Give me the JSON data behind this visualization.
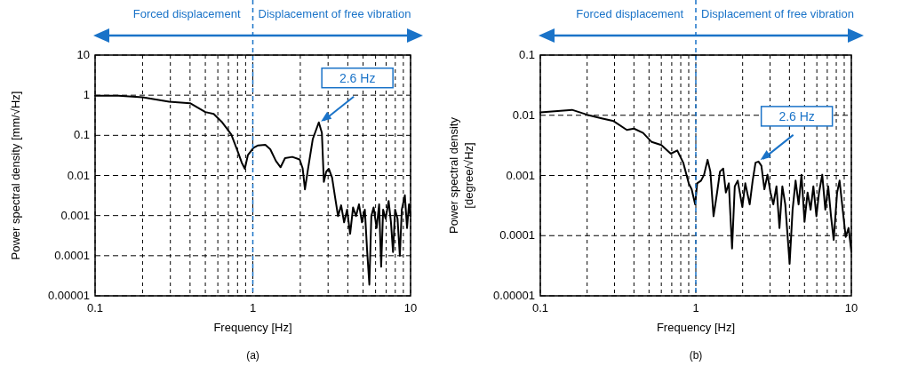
{
  "chart_data": [
    {
      "type": "line",
      "xlabel": "Frequency [Hz]",
      "ylabel": "Power spectral density [mm/√Hz]",
      "log": "xy",
      "grid": true,
      "marker": "none",
      "line_style": "solid",
      "xlim": [
        0.1,
        10
      ],
      "ylim": [
        1e-05,
        10
      ],
      "xticks": [
        0.1,
        {
          "value": 0.2,
          "label": null
        },
        {
          "value": 0.3,
          "label": null
        },
        {
          "value": 0.4,
          "label": null
        },
        {
          "value": 0.5,
          "label": null
        },
        {
          "value": 0.6,
          "label": null
        },
        {
          "value": 0.7,
          "label": null
        },
        {
          "value": 0.8,
          "label": null
        },
        {
          "value": 0.9,
          "label": null
        },
        1,
        {
          "value": 2,
          "label": null
        },
        {
          "value": 3,
          "label": null
        },
        {
          "value": 4,
          "label": null
        },
        {
          "value": 5,
          "label": null
        },
        {
          "value": 6,
          "label": null
        },
        {
          "value": 7,
          "label": null
        },
        {
          "value": 8,
          "label": null
        },
        {
          "value": 9,
          "label": null
        },
        10
      ],
      "yticks": [
        {
          "value": 1e-05,
          "label": "0.00001"
        },
        {
          "value": 0.0001,
          "label": "0.0001"
        },
        {
          "value": 0.001,
          "label": "0.001"
        },
        {
          "value": 0.01,
          "label": "0.01"
        },
        {
          "value": 0.1,
          "label": "0.1"
        },
        {
          "value": 1,
          "label": "1"
        },
        {
          "value": 10,
          "label": "10"
        }
      ],
      "ref_lines": [
        {
          "axis": "x",
          "value": 1,
          "color": "#1a73c8",
          "line_style": "dashed"
        }
      ],
      "annotations": [
        "Forced displacement",
        "Displacement of free vibration",
        {
          "text": "2.6 Hz",
          "x": 2.6,
          "y": 0.2
        },
        "(a)"
      ],
      "series": [
        {
          "color": "#000000",
          "x": [
            0.1,
            0.141,
            0.2,
            0.295,
            0.4,
            0.5,
            0.565,
            0.64,
            0.73,
            0.8,
            0.85,
            0.89,
            0.93,
            1.01,
            1.08,
            1.2,
            1.29,
            1.4,
            1.5,
            1.6,
            1.78,
            1.98,
            2.07,
            2.14,
            2.24,
            2.4,
            2.62,
            2.74,
            2.82,
            2.92,
            3.03,
            3.18,
            3.33,
            3.47,
            3.63,
            3.79,
            3.96,
            4.14,
            4.32,
            4.51,
            4.71,
            4.92,
            5.13,
            5.31,
            5.48,
            5.64,
            5.83,
            6.09,
            6.32,
            6.51,
            6.7,
            6.95,
            7.26,
            7.51,
            7.74,
            7.98,
            8.27,
            8.55,
            8.8,
            9.2,
            9.5,
            9.77,
            10
          ],
          "values": [
            0.97,
            0.97,
            0.89,
            0.69,
            0.63,
            0.38,
            0.34,
            0.21,
            0.105,
            0.041,
            0.021,
            0.0147,
            0.032,
            0.049,
            0.056,
            0.058,
            0.045,
            0.023,
            0.016,
            0.027,
            0.029,
            0.025,
            0.015,
            0.0045,
            0.0147,
            0.081,
            0.21,
            0.115,
            0.0069,
            0.0125,
            0.0147,
            0.0089,
            0.0027,
            0.00097,
            0.0018,
            0.00068,
            0.0014,
            0.00035,
            0.0016,
            0.00097,
            0.0019,
            0.00068,
            0.0014,
            0.000123,
            1.9e-05,
            0.00097,
            0.0016,
            0.00049,
            0.0019,
            5.3e-05,
            0.0014,
            0.00083,
            0.0023,
            0.00068,
            0.000123,
            0.0014,
            0.00083,
            0.0001,
            0.0014,
            0.0032,
            0.00049,
            0.0019,
            0.00097
          ]
        }
      ]
    },
    {
      "type": "line",
      "xlabel": "Frequency [Hz]",
      "ylabel": "Power spectral density\n[degree/√Hz]",
      "log": "xy",
      "grid": true,
      "marker": "none",
      "line_style": "solid",
      "xlim": [
        0.1,
        10
      ],
      "ylim": [
        1e-05,
        0.1
      ],
      "xticks": [
        0.1,
        {
          "value": 0.2,
          "label": null
        },
        {
          "value": 0.3,
          "label": null
        },
        {
          "value": 0.4,
          "label": null
        },
        {
          "value": 0.5,
          "label": null
        },
        {
          "value": 0.6,
          "label": null
        },
        {
          "value": 0.7,
          "label": null
        },
        {
          "value": 0.8,
          "label": null
        },
        {
          "value": 0.9,
          "label": null
        },
        1,
        {
          "value": 2,
          "label": null
        },
        {
          "value": 3,
          "label": null
        },
        {
          "value": 4,
          "label": null
        },
        {
          "value": 5,
          "label": null
        },
        {
          "value": 6,
          "label": null
        },
        {
          "value": 7,
          "label": null
        },
        {
          "value": 8,
          "label": null
        },
        {
          "value": 9,
          "label": null
        },
        10
      ],
      "yticks": [
        {
          "value": 1e-05,
          "label": "0.00001"
        },
        {
          "value": 0.0001,
          "label": "0.0001"
        },
        {
          "value": 0.001,
          "label": "0.001"
        },
        {
          "value": 0.01,
          "label": "0.01"
        },
        {
          "value": 0.1,
          "label": "0.1"
        }
      ],
      "ref_lines": [
        {
          "axis": "x",
          "value": 1,
          "color": "#1a73c8",
          "line_style": "dashed"
        }
      ],
      "annotations": [
        "Forced displacement",
        "Displacement of free vibration",
        {
          "text": "2.6 Hz",
          "x": 2.5,
          "y": 0.0017
        },
        "(b)"
      ],
      "series": [
        {
          "color": "#000000",
          "x": [
            0.1,
            0.16,
            0.2,
            0.248,
            0.296,
            0.36,
            0.4,
            0.458,
            0.52,
            0.6,
            0.69,
            0.76,
            0.83,
            0.9,
            0.94,
            0.99,
            1.02,
            1.08,
            1.13,
            1.19,
            1.24,
            1.3,
            1.37,
            1.43,
            1.5,
            1.56,
            1.63,
            1.71,
            1.78,
            1.86,
            1.99,
            2.08,
            2.22,
            2.32,
            2.42,
            2.53,
            2.64,
            2.76,
            2.89,
            3.02,
            3.15,
            3.3,
            3.45,
            3.6,
            3.76,
            4.01,
            4.19,
            4.38,
            4.58,
            4.78,
            5.0,
            5.23,
            5.47,
            5.7,
            5.96,
            6.2,
            6.5,
            6.8,
            7.1,
            7.4,
            7.7,
            8.1,
            8.4,
            8.8,
            9.2,
            9.6,
            10
          ],
          "values": [
            0.0112,
            0.0123,
            0.0102,
            0.0089,
            0.008,
            0.0057,
            0.006,
            0.0051,
            0.0036,
            0.0032,
            0.0023,
            0.0026,
            0.00163,
            0.00074,
            0.00059,
            0.00033,
            0.00074,
            0.00082,
            0.00103,
            0.00182,
            0.00116,
            0.00021,
            0.00052,
            0.00116,
            0.0013,
            0.00052,
            0.00074,
            6.1e-05,
            0.00066,
            0.00082,
            0.0003,
            0.00074,
            0.00033,
            0.00082,
            0.00163,
            0.0017,
            0.00145,
            0.00059,
            0.00103,
            0.00052,
            0.00033,
            0.00066,
            0.000134,
            0.00066,
            0.00033,
            3.4e-05,
            0.00027,
            0.00082,
            0.00033,
            0.00103,
            0.00017,
            0.00052,
            0.00027,
            0.00066,
            0.00021,
            0.00052,
            0.00103,
            0.00027,
            0.00066,
            0.00021,
            8.5e-05,
            0.00052,
            0.00082,
            0.00027,
            9.5e-05,
            0.000134,
            5.4e-05
          ]
        }
      ]
    }
  ]
}
